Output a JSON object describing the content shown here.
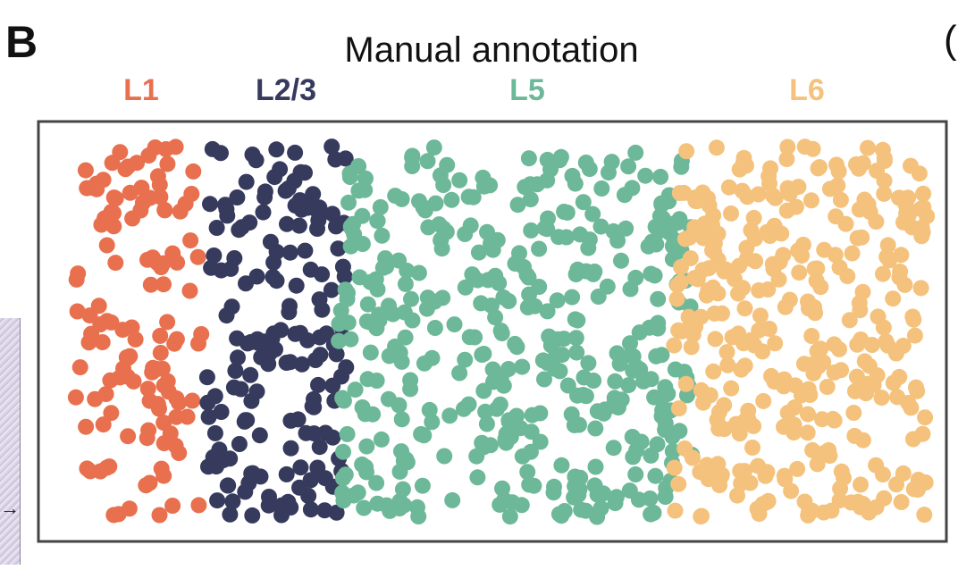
{
  "panel_label": "B",
  "next_panel_fragment": "(",
  "chart_data": {
    "type": "scatter",
    "title": "Manual annotation",
    "xlabel": "",
    "ylabel": "",
    "xlim": [
      0,
      100
    ],
    "ylim": [
      0,
      100
    ],
    "grid": false,
    "legend": "none",
    "series": [
      {
        "name": "L1",
        "color": "#e8704e",
        "x_range": [
          4,
          18
        ],
        "count": 130
      },
      {
        "name": "L2/3",
        "color": "#363a5c",
        "x_range": [
          18.5,
          34
        ],
        "count": 170
      },
      {
        "name": "L5",
        "color": "#6db899",
        "x_range": [
          33,
          72
        ],
        "count": 420
      },
      {
        "name": "L6",
        "color": "#f4c27c",
        "x_range": [
          70,
          98
        ],
        "count": 340
      }
    ]
  }
}
